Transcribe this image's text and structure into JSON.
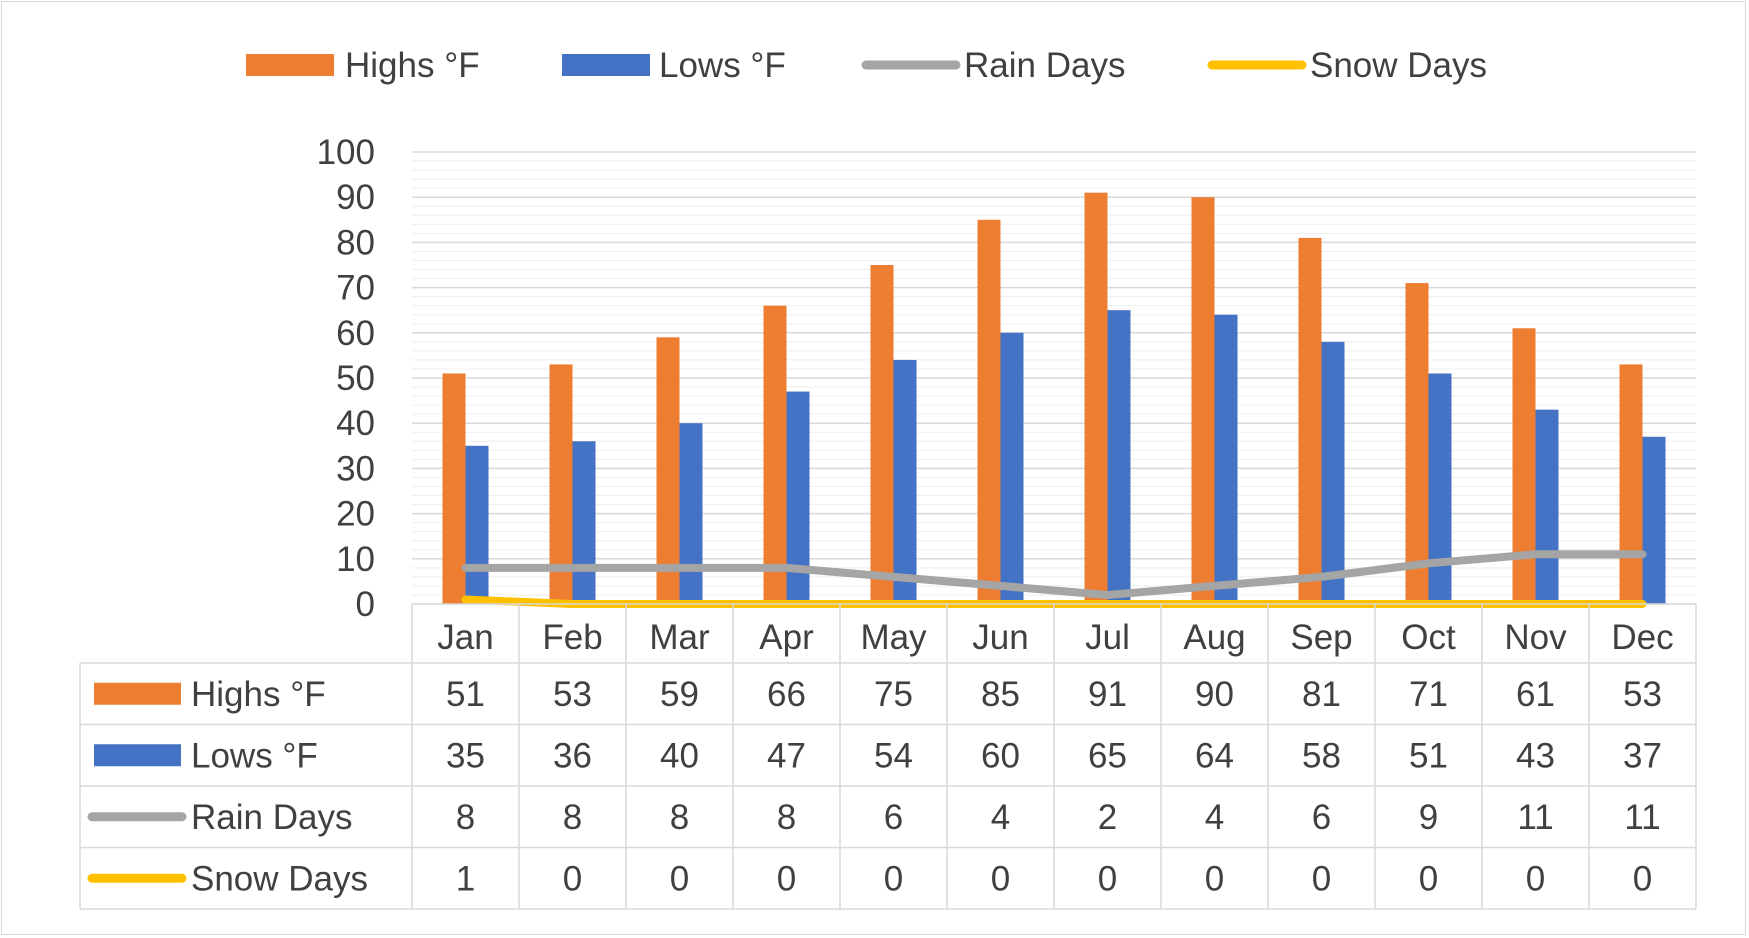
{
  "chart_data": {
    "type": "bar",
    "categories": [
      "Jan",
      "Feb",
      "Mar",
      "Apr",
      "May",
      "Jun",
      "Jul",
      "Aug",
      "Sep",
      "Oct",
      "Nov",
      "Dec"
    ],
    "series": [
      {
        "name": "Highs °F",
        "kind": "bar",
        "color": "#ED7D31",
        "values": [
          51,
          53,
          59,
          66,
          75,
          85,
          91,
          90,
          81,
          71,
          61,
          53
        ]
      },
      {
        "name": "Lows °F",
        "kind": "bar",
        "color": "#4472C4",
        "values": [
          35,
          36,
          40,
          47,
          54,
          60,
          65,
          64,
          58,
          51,
          43,
          37
        ]
      },
      {
        "name": "Rain Days",
        "kind": "line",
        "color": "#A5A5A5",
        "values": [
          8,
          8,
          8,
          8,
          6,
          4,
          2,
          4,
          6,
          9,
          11,
          11
        ]
      },
      {
        "name": "Snow Days",
        "kind": "line",
        "color": "#FFC000",
        "values": [
          1,
          0,
          0,
          0,
          0,
          0,
          0,
          0,
          0,
          0,
          0,
          0
        ]
      }
    ],
    "ylim": [
      0,
      100
    ],
    "yticks": [
      0,
      10,
      20,
      30,
      40,
      50,
      60,
      70,
      80,
      90,
      100
    ],
    "grid": true,
    "legend": "top",
    "data_table": true
  }
}
